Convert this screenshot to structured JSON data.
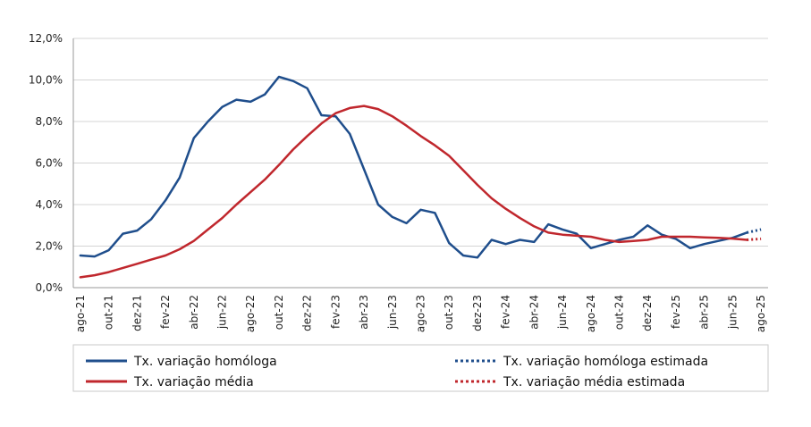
{
  "chart_data": {
    "type": "line",
    "title": "",
    "xlabel": "",
    "ylabel": "",
    "ylim": [
      0,
      12
    ],
    "yticks": [
      "0,0%",
      "2,0%",
      "4,0%",
      "6,0%",
      "8,0%",
      "10,0%",
      "12,0%"
    ],
    "grid": true,
    "legend_position": "bottom",
    "x_tick_labels": [
      "ago-21",
      "out-21",
      "dez-21",
      "fev-22",
      "abr-22",
      "jun-22",
      "ago-22",
      "out-22",
      "dez-22",
      "fev-23",
      "abr-23",
      "jun-23",
      "ago-23",
      "out-23",
      "dez-23",
      "fev-24",
      "abr-24",
      "jun-24",
      "ago-24",
      "out-24",
      "dez-24",
      "fev-25",
      "abr-25",
      "jun-25",
      "ago-25"
    ],
    "months": [
      "ago-21",
      "set-21",
      "out-21",
      "nov-21",
      "dez-21",
      "jan-22",
      "fev-22",
      "mar-22",
      "abr-22",
      "mai-22",
      "jun-22",
      "jul-22",
      "ago-22",
      "set-22",
      "out-22",
      "nov-22",
      "dez-22",
      "jan-23",
      "fev-23",
      "mar-23",
      "abr-23",
      "mai-23",
      "jun-23",
      "jul-23",
      "ago-23",
      "set-23",
      "out-23",
      "nov-23",
      "dez-23",
      "jan-24",
      "fev-24",
      "mar-24",
      "abr-24",
      "mai-24",
      "jun-24",
      "jul-24",
      "ago-24",
      "set-24",
      "out-24",
      "nov-24",
      "dez-24",
      "jan-25",
      "fev-25",
      "mar-25",
      "abr-25",
      "mai-25",
      "jun-25",
      "jul-25",
      "ago-25"
    ],
    "series": [
      {
        "name": "Tx. variação homóloga",
        "color": "#1f4e8c",
        "style": "solid",
        "values": [
          1.55,
          1.5,
          1.8,
          2.6,
          2.75,
          3.3,
          4.2,
          5.3,
          7.2,
          8.0,
          8.7,
          9.05,
          8.95,
          9.3,
          10.15,
          9.95,
          9.6,
          8.3,
          8.25,
          7.4,
          5.7,
          4.0,
          3.4,
          3.1,
          3.75,
          3.6,
          2.15,
          1.55,
          1.45,
          2.3,
          2.1,
          2.3,
          2.2,
          3.05,
          2.8,
          2.6,
          1.9,
          2.1,
          2.3,
          2.45,
          3.0,
          2.55,
          2.35,
          1.9,
          2.1,
          2.25,
          2.4,
          2.65,
          null
        ]
      },
      {
        "name": "Tx. variação homóloga estimada",
        "color": "#1f4e8c",
        "style": "dotted",
        "values": [
          null,
          null,
          null,
          null,
          null,
          null,
          null,
          null,
          null,
          null,
          null,
          null,
          null,
          null,
          null,
          null,
          null,
          null,
          null,
          null,
          null,
          null,
          null,
          null,
          null,
          null,
          null,
          null,
          null,
          null,
          null,
          null,
          null,
          null,
          null,
          null,
          null,
          null,
          null,
          null,
          null,
          null,
          null,
          null,
          null,
          null,
          null,
          2.65,
          2.8
        ]
      },
      {
        "name": "Tx. variação média",
        "color": "#c0272d",
        "style": "solid",
        "values": [
          0.5,
          0.6,
          0.75,
          0.95,
          1.15,
          1.35,
          1.55,
          1.85,
          2.25,
          2.8,
          3.35,
          4.0,
          4.6,
          5.2,
          5.9,
          6.65,
          7.3,
          7.9,
          8.4,
          8.65,
          8.75,
          8.6,
          8.25,
          7.8,
          7.3,
          6.85,
          6.35,
          5.65,
          4.95,
          4.3,
          3.8,
          3.35,
          2.95,
          2.65,
          2.55,
          2.5,
          2.45,
          2.3,
          2.2,
          2.25,
          2.3,
          2.45,
          2.45,
          2.45,
          2.42,
          2.4,
          2.36,
          2.3,
          null
        ]
      },
      {
        "name": "Tx. variação média  estimada",
        "color": "#c0272d",
        "style": "dotted",
        "values": [
          null,
          null,
          null,
          null,
          null,
          null,
          null,
          null,
          null,
          null,
          null,
          null,
          null,
          null,
          null,
          null,
          null,
          null,
          null,
          null,
          null,
          null,
          null,
          null,
          null,
          null,
          null,
          null,
          null,
          null,
          null,
          null,
          null,
          null,
          null,
          null,
          null,
          null,
          null,
          null,
          null,
          null,
          null,
          null,
          null,
          null,
          null,
          2.3,
          2.35
        ]
      }
    ]
  }
}
